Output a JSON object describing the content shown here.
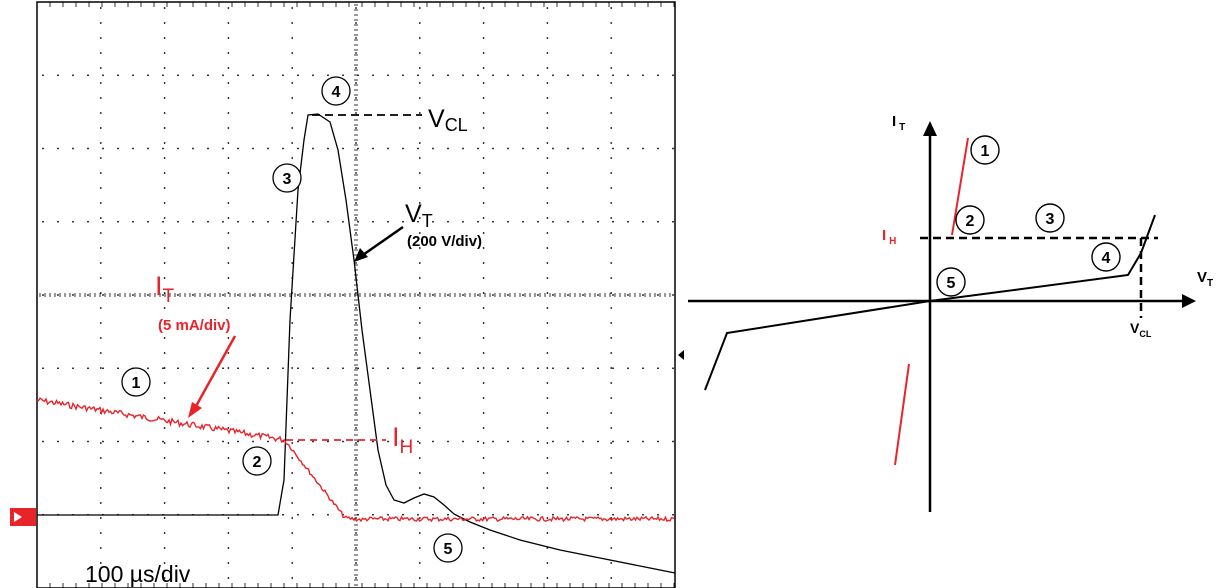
{
  "scope": {
    "labels": {
      "vcl_main": "V",
      "vcl_sub": "CL",
      "vt_main": "V",
      "vt_sub": "T",
      "vt_scale": "(200 V/div)",
      "it_main": "I",
      "it_sub": "T",
      "it_scale": "(5 mA/div)",
      "ih_main": "I",
      "ih_sub": "H",
      "timebase": "100 µs/div"
    },
    "markers": [
      "1",
      "2",
      "3",
      "4",
      "5"
    ],
    "colors": {
      "voltage": "#000000",
      "current": "#e8242b",
      "grid": "#000000"
    }
  },
  "iv_plot": {
    "labels": {
      "it_main": "I",
      "it_sub": "T",
      "vt_main": "V",
      "vt_sub": "T",
      "ih_main": "I",
      "ih_sub": "H",
      "vcl_main": "V",
      "vcl_sub": "CL"
    },
    "markers": [
      "1",
      "2",
      "3",
      "4",
      "5"
    ]
  }
}
